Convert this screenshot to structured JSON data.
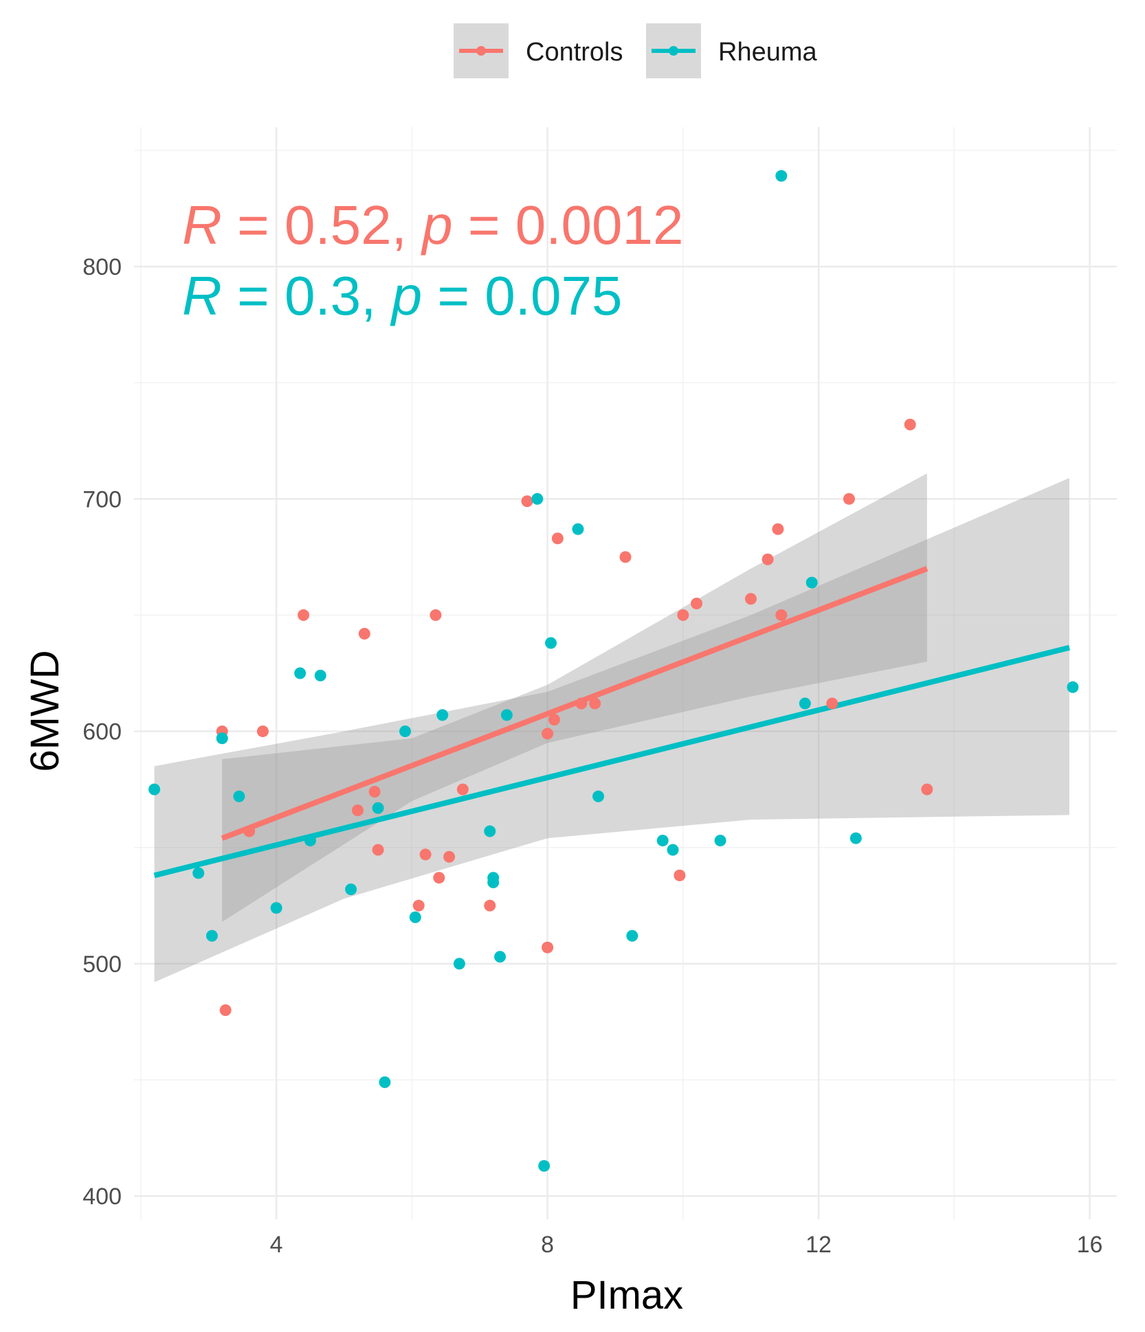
{
  "chart_data": {
    "type": "scatter",
    "title": "",
    "xlabel": "PImax",
    "ylabel": "6MWD",
    "xlim": [
      1.9,
      16.4
    ],
    "ylim": [
      390,
      860
    ],
    "x_ticks": [
      4,
      8,
      12,
      16
    ],
    "x_tick_labels": [
      "4",
      "8",
      "12",
      "16"
    ],
    "y_ticks": [
      400,
      500,
      600,
      700,
      800
    ],
    "y_tick_labels": [
      "400",
      "500",
      "600",
      "700",
      "800"
    ],
    "grid": true,
    "legend_position": "top",
    "colors": {
      "Controls": "#F8766D",
      "Rheuma": "#00BFC4",
      "band": "#999999"
    },
    "series": [
      {
        "name": "Controls",
        "legend_label": "Controls",
        "stat_R": "0.52",
        "stat_p": "0.0012",
        "points": [
          [
            3.2,
            600
          ],
          [
            3.25,
            480
          ],
          [
            3.6,
            557
          ],
          [
            3.8,
            600
          ],
          [
            4.4,
            650
          ],
          [
            5.2,
            566
          ],
          [
            5.3,
            642
          ],
          [
            5.45,
            574
          ],
          [
            5.5,
            549
          ],
          [
            6.1,
            525
          ],
          [
            6.2,
            547
          ],
          [
            6.35,
            650
          ],
          [
            6.4,
            537
          ],
          [
            6.55,
            546
          ],
          [
            6.75,
            575
          ],
          [
            7.15,
            525
          ],
          [
            7.7,
            699
          ],
          [
            8.0,
            507
          ],
          [
            8.0,
            599
          ],
          [
            8.1,
            605
          ],
          [
            8.15,
            683
          ],
          [
            8.5,
            612
          ],
          [
            8.7,
            612
          ],
          [
            9.15,
            675
          ],
          [
            9.95,
            538
          ],
          [
            10.0,
            650
          ],
          [
            10.2,
            655
          ],
          [
            11.0,
            657
          ],
          [
            11.25,
            674
          ],
          [
            11.4,
            687
          ],
          [
            11.45,
            650
          ],
          [
            12.2,
            612
          ],
          [
            12.45,
            700
          ],
          [
            13.35,
            732
          ],
          [
            13.6,
            575
          ]
        ],
        "fit": {
          "x": [
            3.2,
            13.6
          ],
          "y": [
            554,
            670
          ]
        },
        "ci_band": {
          "x": [
            3.2,
            6.0,
            8.0,
            11.0,
            13.6
          ],
          "lower": [
            518,
            570,
            595,
            615,
            630
          ],
          "upper": [
            588,
            597,
            620,
            670,
            711
          ]
        }
      },
      {
        "name": "Rheuma",
        "legend_label": "Rheuma",
        "stat_R": "0.3",
        "stat_p": "0.075",
        "points": [
          [
            2.2,
            575
          ],
          [
            2.85,
            539
          ],
          [
            3.05,
            512
          ],
          [
            3.2,
            597
          ],
          [
            3.45,
            572
          ],
          [
            4.0,
            524
          ],
          [
            4.35,
            625
          ],
          [
            4.5,
            553
          ],
          [
            4.65,
            624
          ],
          [
            5.1,
            532
          ],
          [
            5.5,
            567
          ],
          [
            5.6,
            449
          ],
          [
            5.9,
            600
          ],
          [
            6.05,
            520
          ],
          [
            6.45,
            607
          ],
          [
            6.7,
            500
          ],
          [
            7.15,
            557
          ],
          [
            7.2,
            537
          ],
          [
            7.2,
            535
          ],
          [
            7.3,
            503
          ],
          [
            7.4,
            607
          ],
          [
            7.85,
            700
          ],
          [
            7.95,
            413
          ],
          [
            8.05,
            638
          ],
          [
            8.45,
            687
          ],
          [
            8.75,
            572
          ],
          [
            9.25,
            512
          ],
          [
            9.7,
            553
          ],
          [
            9.85,
            549
          ],
          [
            10.55,
            553
          ],
          [
            11.45,
            839
          ],
          [
            11.8,
            612
          ],
          [
            11.9,
            664
          ],
          [
            12.55,
            554
          ],
          [
            15.75,
            619
          ]
        ],
        "fit": {
          "x": [
            2.2,
            15.7
          ],
          "y": [
            538,
            636
          ]
        },
        "ci_band": {
          "x": [
            2.2,
            5.0,
            8.0,
            11.0,
            15.7
          ],
          "lower": [
            492,
            528,
            554,
            562,
            564
          ],
          "upper": [
            585,
            600,
            617,
            650,
            709
          ]
        }
      }
    ]
  }
}
